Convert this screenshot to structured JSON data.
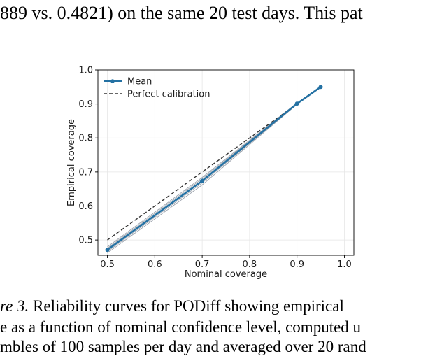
{
  "text": {
    "top_line": "889 vs. 0.4821) on the same 20 test days. This pat",
    "caption_fig": "re 3.",
    "caption_rest": "  Reliability curves for PODiff showing empirical",
    "caption_line2": "e as a function of nominal confidence level, computed u",
    "caption_line3": "mbles of 100 samples per day and averaged over 20 rand"
  },
  "chart_data": {
    "type": "line",
    "xlabel": "Nominal coverage",
    "ylabel": "Empirical coverage",
    "xlim": [
      0.48,
      1.02
    ],
    "ylim": [
      0.455,
      1.0
    ],
    "x_ticks": [
      "0.5",
      "0.6",
      "0.7",
      "0.8",
      "0.9",
      "1.0"
    ],
    "y_ticks": [
      "0.5",
      "0.6",
      "0.7",
      "0.8",
      "0.9",
      "1.0"
    ],
    "grid": true,
    "legend_position": "top-left",
    "colors": {
      "mean": "#2471a3",
      "individual": "#9ca3ad",
      "perfect": "#333333"
    },
    "series": [
      {
        "name": "Mean",
        "style": "solid-marker",
        "x": [
          0.5,
          0.7,
          0.9,
          0.95
        ],
        "y": [
          0.471,
          0.674,
          0.901,
          0.95
        ]
      },
      {
        "name": "Perfect calibration",
        "style": "dashed",
        "x": [
          0.5,
          0.95
        ],
        "y": [
          0.5,
          0.95
        ]
      }
    ],
    "individual_curves": [
      {
        "x": [
          0.5,
          0.7,
          0.9,
          0.95
        ],
        "y": [
          0.462,
          0.662,
          0.899,
          0.95
        ]
      },
      {
        "x": [
          0.5,
          0.7,
          0.9,
          0.95
        ],
        "y": [
          0.466,
          0.668,
          0.9,
          0.95
        ]
      },
      {
        "x": [
          0.5,
          0.7,
          0.9,
          0.95
        ],
        "y": [
          0.476,
          0.68,
          0.902,
          0.95
        ]
      },
      {
        "x": [
          0.5,
          0.7,
          0.9,
          0.95
        ],
        "y": [
          0.48,
          0.684,
          0.903,
          0.95
        ]
      }
    ]
  }
}
